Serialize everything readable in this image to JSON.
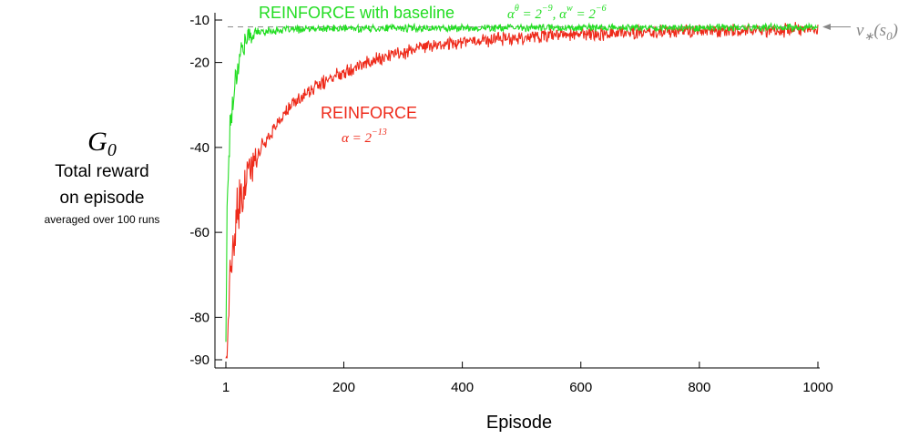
{
  "chart_data": {
    "type": "line",
    "xlabel": "Episode",
    "ylabel_symbol": "G",
    "ylabel_symbol_sub": "0",
    "ylabel_lines": [
      "Total reward",
      "on episode"
    ],
    "ylabel_note": "averaged over 100 runs",
    "x_ticks": [
      "1",
      "200",
      "400",
      "600",
      "800",
      "1000"
    ],
    "y_ticks": [
      "-10",
      "-20",
      "-40",
      "-60",
      "-80",
      "-90"
    ],
    "xlim": [
      1,
      1000
    ],
    "ylim": [
      -92,
      -9
    ],
    "reference_line": {
      "label": "v*(s0)",
      "y": -11.6,
      "style": "dashed",
      "color": "#888888"
    },
    "series": [
      {
        "name": "REINFORCE with baseline",
        "color": "#22dd22",
        "params": "αθ = 2−9, αw = 2−6",
        "x": [
          1,
          3,
          5,
          8,
          12,
          16,
          20,
          25,
          30,
          40,
          50,
          60,
          80,
          100,
          150,
          200,
          300,
          400,
          500,
          600,
          700,
          800,
          900,
          1000
        ],
        "values": [
          -85,
          -55,
          -45,
          -35,
          -30,
          -25,
          -21,
          -18,
          -16,
          -14,
          -13,
          -12.8,
          -12.5,
          -12.3,
          -12.1,
          -12,
          -11.9,
          -11.9,
          -11.8,
          -11.8,
          -11.8,
          -11.8,
          -11.8,
          -11.8
        ],
        "noise": 0.7
      },
      {
        "name": "REINFORCE",
        "color": "#ee2a1a",
        "params": "α = 2−13",
        "x": [
          1,
          5,
          10,
          20,
          30,
          40,
          50,
          60,
          80,
          100,
          120,
          150,
          175,
          200,
          250,
          300,
          350,
          400,
          500,
          600,
          700,
          800,
          900,
          1000
        ],
        "values": [
          -90,
          -80,
          -68,
          -57,
          -51,
          -46,
          -43,
          -40,
          -36,
          -32,
          -29,
          -26,
          -24,
          -22,
          -19.5,
          -17.5,
          -16,
          -15,
          -14,
          -13.3,
          -12.9,
          -12.6,
          -12.4,
          -12.3
        ],
        "noise": 1.3
      }
    ]
  },
  "annotations": {
    "baseline_label": "REINFORCE with baseline",
    "baseline_params": "αθ = 2−9, αw = 2−6",
    "reinforce_label": "REINFORCE",
    "reinforce_params": "α = 2−13",
    "reference_label": "v*(s0)"
  }
}
